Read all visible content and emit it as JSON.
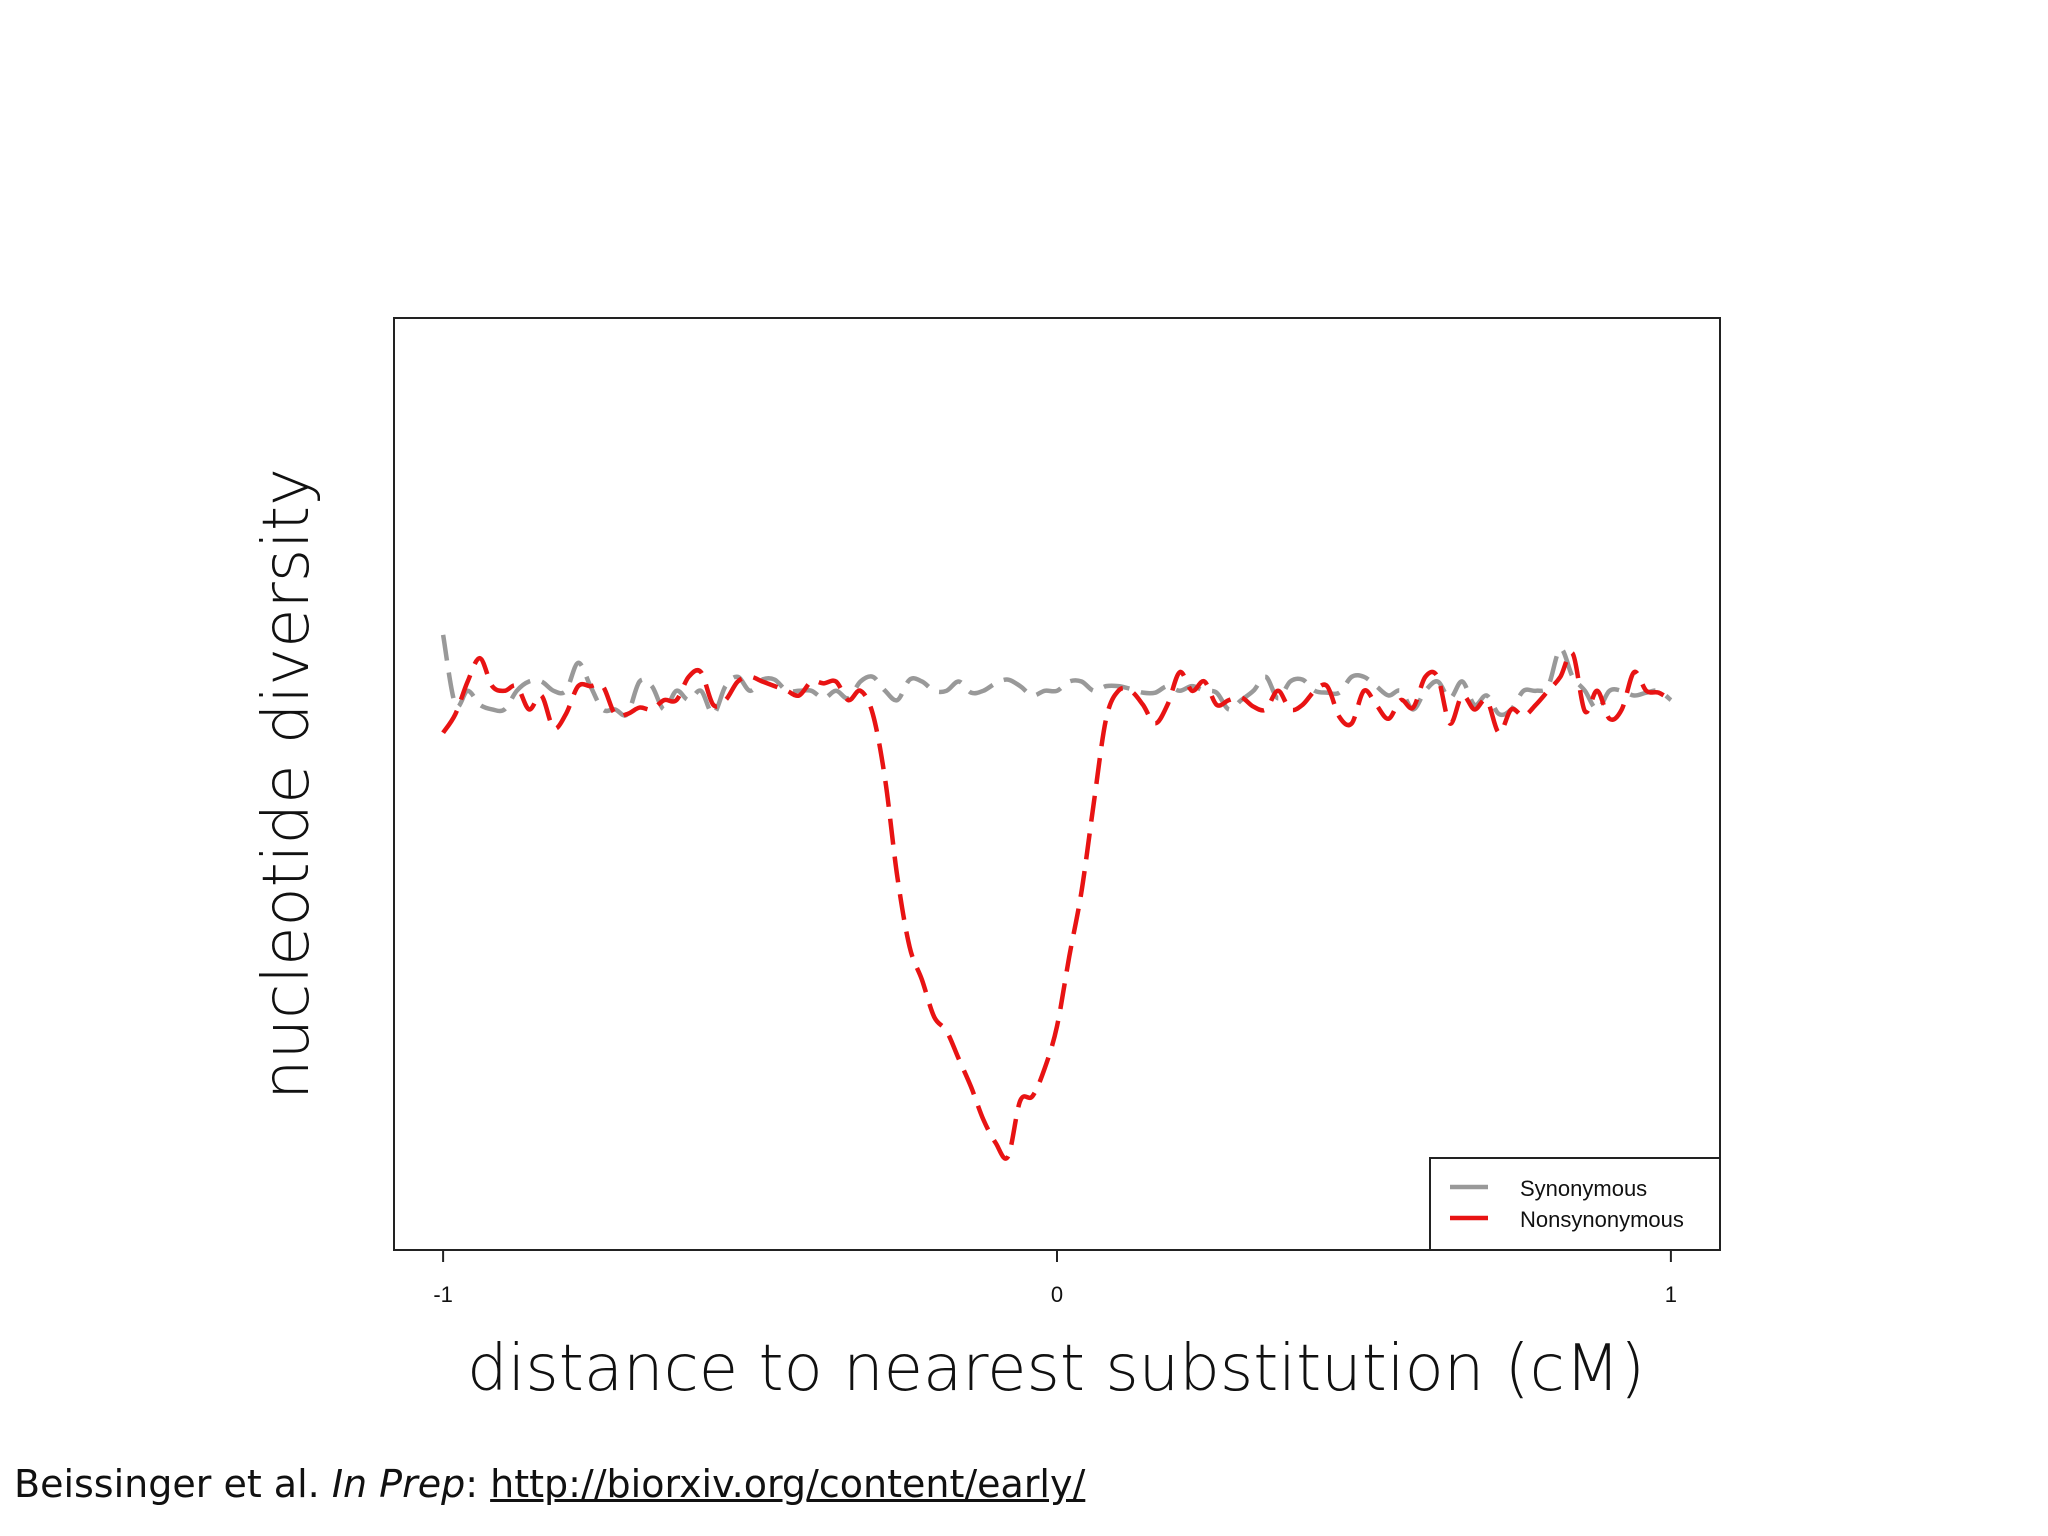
{
  "chart_data": {
    "type": "line",
    "xlabel": "distance to nearest substitution (cM)",
    "ylabel": "nucleotide diversity",
    "xlim": [
      -1.08,
      1.08
    ],
    "ylim": [
      0,
      1
    ],
    "xticks": [
      {
        "value": -1,
        "label": "-1"
      },
      {
        "value": 0,
        "label": "0"
      },
      {
        "value": 1,
        "label": "1"
      }
    ],
    "yticks_shown": false,
    "grid": false,
    "legend_position": "bottom-right",
    "series": [
      {
        "name": "Synonymous",
        "color": "#999999",
        "dash": "dashed",
        "x": [
          -1.0,
          -0.98,
          -0.96,
          -0.94,
          -0.92,
          -0.9,
          -0.88,
          -0.86,
          -0.84,
          -0.82,
          -0.8,
          -0.78,
          -0.76,
          -0.74,
          -0.72,
          -0.7,
          -0.68,
          -0.66,
          -0.64,
          -0.62,
          -0.6,
          -0.58,
          -0.56,
          -0.54,
          -0.52,
          -0.5,
          -0.48,
          -0.46,
          -0.44,
          -0.42,
          -0.4,
          -0.38,
          -0.36,
          -0.34,
          -0.32,
          -0.3,
          -0.28,
          -0.26,
          -0.24,
          -0.22,
          -0.2,
          -0.18,
          -0.16,
          -0.14,
          -0.12,
          -0.1,
          -0.08,
          -0.06,
          -0.04,
          -0.02,
          0.0,
          0.02,
          0.04,
          0.06,
          0.08,
          0.1,
          0.12,
          0.14,
          0.16,
          0.18,
          0.2,
          0.22,
          0.24,
          0.26,
          0.28,
          0.3,
          0.32,
          0.34,
          0.36,
          0.38,
          0.4,
          0.42,
          0.44,
          0.46,
          0.48,
          0.5,
          0.52,
          0.54,
          0.56,
          0.58,
          0.6,
          0.62,
          0.64,
          0.66,
          0.68,
          0.7,
          0.72,
          0.74,
          0.76,
          0.78,
          0.8,
          0.82,
          0.84,
          0.86,
          0.88,
          0.9,
          0.92,
          0.94,
          0.96,
          0.98,
          1.0
        ],
        "values": [
          0.66,
          0.585,
          0.6,
          0.585,
          0.58,
          0.58,
          0.6,
          0.61,
          0.61,
          0.6,
          0.6,
          0.63,
          0.605,
          0.58,
          0.58,
          0.575,
          0.61,
          0.605,
          0.58,
          0.6,
          0.59,
          0.6,
          0.575,
          0.605,
          0.615,
          0.6,
          0.612,
          0.612,
          0.6,
          0.6,
          0.6,
          0.592,
          0.6,
          0.592,
          0.61,
          0.615,
          0.6,
          0.59,
          0.612,
          0.61,
          0.6,
          0.6,
          0.61,
          0.598,
          0.6,
          0.608,
          0.612,
          0.605,
          0.595,
          0.6,
          0.6,
          0.61,
          0.61,
          0.6,
          0.605,
          0.605,
          0.602,
          0.598,
          0.598,
          0.605,
          0.6,
          0.605,
          0.6,
          0.598,
          0.58,
          0.59,
          0.6,
          0.615,
          0.592,
          0.61,
          0.612,
          0.6,
          0.598,
          0.598,
          0.615,
          0.615,
          0.605,
          0.595,
          0.6,
          0.58,
          0.6,
          0.61,
          0.592,
          0.61,
          0.585,
          0.595,
          0.575,
          0.58,
          0.6,
          0.6,
          0.605,
          0.645,
          0.615,
          0.6,
          0.58,
          0.6,
          0.6,
          0.595,
          0.598,
          0.6,
          0.59
        ]
      },
      {
        "name": "Nonsynonymous",
        "color": "#e81313",
        "dash": "dashed",
        "x": [
          -1.0,
          -0.98,
          -0.96,
          -0.94,
          -0.92,
          -0.9,
          -0.88,
          -0.86,
          -0.84,
          -0.82,
          -0.8,
          -0.78,
          -0.76,
          -0.74,
          -0.72,
          -0.7,
          -0.68,
          -0.66,
          -0.64,
          -0.62,
          -0.6,
          -0.58,
          -0.56,
          -0.54,
          -0.52,
          -0.5,
          -0.48,
          -0.46,
          -0.44,
          -0.42,
          -0.4,
          -0.38,
          -0.36,
          -0.34,
          -0.32,
          -0.3,
          -0.28,
          -0.26,
          -0.24,
          -0.22,
          -0.2,
          -0.18,
          -0.16,
          -0.14,
          -0.12,
          -0.1,
          -0.08,
          -0.06,
          -0.04,
          -0.02,
          0.0,
          0.02,
          0.04,
          0.06,
          0.08,
          0.1,
          0.12,
          0.14,
          0.16,
          0.18,
          0.2,
          0.22,
          0.24,
          0.26,
          0.28,
          0.3,
          0.32,
          0.34,
          0.36,
          0.38,
          0.4,
          0.42,
          0.44,
          0.46,
          0.48,
          0.5,
          0.52,
          0.54,
          0.56,
          0.58,
          0.6,
          0.62,
          0.64,
          0.66,
          0.68,
          0.7,
          0.72,
          0.74,
          0.76,
          0.78,
          0.8,
          0.82,
          0.84,
          0.86,
          0.88,
          0.9,
          0.92,
          0.94,
          0.96,
          0.98,
          1.0
        ],
        "values": [
          0.555,
          0.575,
          0.61,
          0.635,
          0.605,
          0.6,
          0.605,
          0.58,
          0.595,
          0.56,
          0.575,
          0.605,
          0.605,
          0.605,
          0.575,
          0.575,
          0.582,
          0.58,
          0.59,
          0.59,
          0.615,
          0.62,
          0.585,
          0.59,
          0.61,
          0.615,
          0.61,
          0.605,
          0.6,
          0.595,
          0.61,
          0.608,
          0.61,
          0.59,
          0.6,
          0.575,
          0.505,
          0.4,
          0.325,
          0.29,
          0.25,
          0.235,
          0.205,
          0.175,
          0.14,
          0.115,
          0.1,
          0.16,
          0.165,
          0.195,
          0.24,
          0.315,
          0.385,
          0.48,
          0.57,
          0.6,
          0.6,
          0.585,
          0.565,
          0.585,
          0.62,
          0.6,
          0.61,
          0.585,
          0.59,
          0.593,
          0.583,
          0.58,
          0.6,
          0.58,
          0.585,
          0.6,
          0.605,
          0.572,
          0.565,
          0.6,
          0.585,
          0.57,
          0.59,
          0.582,
          0.615,
          0.615,
          0.565,
          0.595,
          0.58,
          0.59,
          0.555,
          0.58,
          0.573,
          0.585,
          0.6,
          0.615,
          0.64,
          0.578,
          0.6,
          0.57,
          0.58,
          0.62,
          0.6,
          0.598,
          0.59
        ]
      }
    ]
  },
  "legend": {
    "items": [
      {
        "label": "Synonymous",
        "color": "#999999"
      },
      {
        "label": "Nonsynonymous",
        "color": "#e81313"
      }
    ]
  },
  "citation": {
    "authors": "Beissinger et al. ",
    "status": "In Prep",
    "separator": ": ",
    "link": "http://biorxiv.org/content/early/"
  }
}
